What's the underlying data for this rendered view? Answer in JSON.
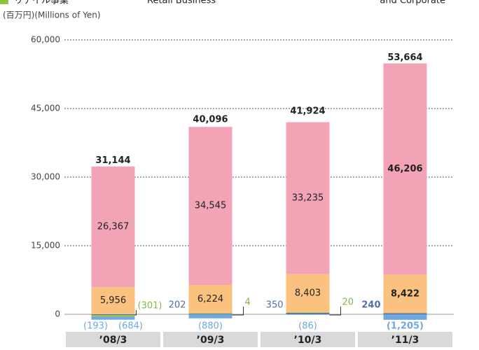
{
  "chart_data": {
    "type": "stacked_bar",
    "legend_fragments": [
      "リテイル事業",
      "Retail Business",
      "and Corporate"
    ],
    "legend_color": "#8cc63f",
    "y_axis_label": "(百万円)(Millions of Yen)",
    "categories": [
      "’08/3",
      "’09/3",
      "’10/3",
      "’11/3"
    ],
    "ylim": [
      0,
      60000
    ],
    "yticks": [
      0,
      {
        "value": 15000,
        "label": "15,000"
      },
      {
        "value": 30000,
        "label": "30,000"
      },
      {
        "value": 45000,
        "label": "45,000"
      },
      {
        "value": 60000,
        "label": "60,000"
      }
    ],
    "grid": true,
    "series": [
      {
        "color": "#4f6fae",
        "values": [
          -193,
          202,
          350,
          240
        ],
        "value_labels": [
          "(193)",
          "202",
          "350",
          "240"
        ]
      },
      {
        "color": "#8cc63f",
        "values": [
          -301,
          4,
          20,
          null
        ],
        "value_labels": [
          "(301)",
          "4",
          "20",
          null
        ]
      },
      {
        "color": "#fac27e",
        "values": [
          5956,
          6224,
          8403,
          8422
        ],
        "value_labels": [
          "5,956",
          "6,224",
          "8,403",
          "8,422"
        ]
      },
      {
        "color": "#f2a3b6",
        "values": [
          26367,
          34545,
          33235,
          46206
        ],
        "value_labels": [
          "26,367",
          "34,545",
          "33,235",
          "46,206"
        ]
      },
      {
        "color": "#6fa8dc",
        "values": [
          -684,
          -880,
          -86,
          -1205
        ],
        "value_labels": [
          "(684)",
          "(880)",
          "(86)",
          "(1,205)"
        ]
      }
    ],
    "totals": [
      31144,
      40096,
      41924,
      53664
    ],
    "total_labels": [
      "31,144",
      "40,096",
      "41,924",
      "53,664"
    ]
  }
}
